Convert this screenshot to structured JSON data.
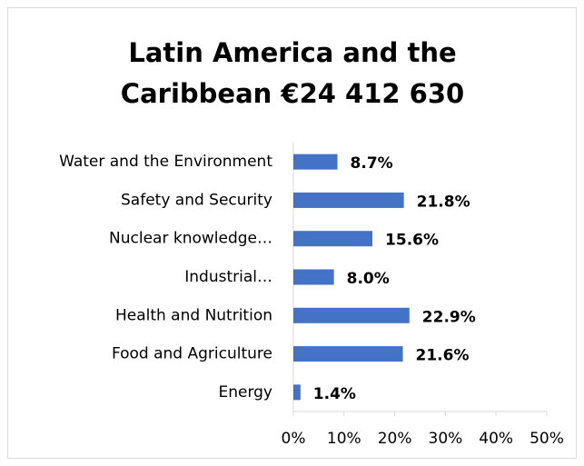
{
  "chart_data": {
    "type": "barh",
    "title": "Latin America and the Caribbean €24 412 630",
    "categories": [
      "Water and the Environment",
      "Safety and Security",
      "Nuclear knowledge…",
      "Industrial…",
      "Health and Nutrition",
      "Food and Agriculture",
      "Energy"
    ],
    "values": [
      8.7,
      21.8,
      15.6,
      8.0,
      22.9,
      21.6,
      1.4
    ],
    "value_labels": [
      "8.7%",
      "21.8%",
      "15.6%",
      "8.0%",
      "22.9%",
      "21.6%",
      "1.4%"
    ],
    "color": "#4472c4",
    "xlim": [
      0,
      50
    ],
    "xticks": [
      {
        "value": 0,
        "label": "0%"
      },
      {
        "value": 10,
        "label": "10%"
      },
      {
        "value": 20,
        "label": "20%"
      },
      {
        "value": 30,
        "label": "30%"
      },
      {
        "value": 40,
        "label": "40%"
      },
      {
        "value": 50,
        "label": "50%"
      }
    ],
    "grid": false
  }
}
